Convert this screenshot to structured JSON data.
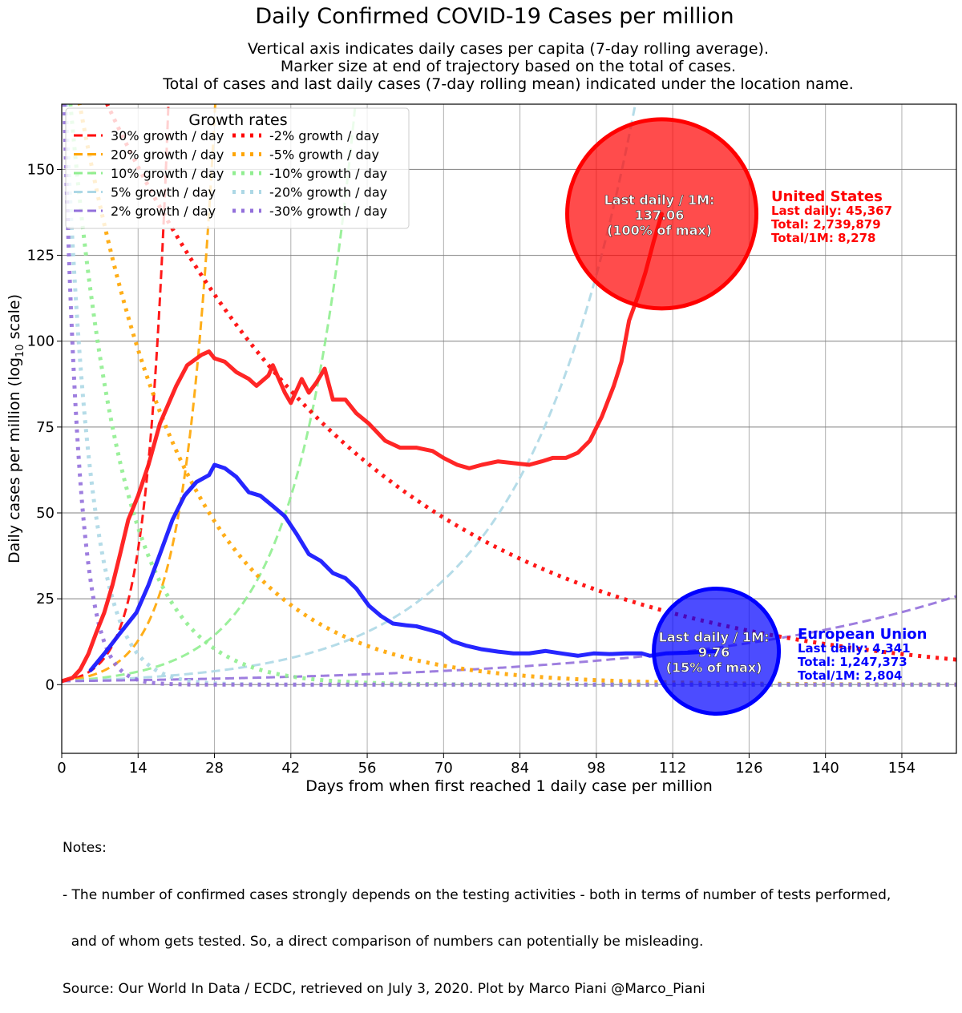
{
  "chart_data": {
    "type": "line",
    "title": "Daily Confirmed COVID-19 Cases per million",
    "subtitle": [
      "Vertical axis indicates daily cases per capita (7-day rolling average).",
      "Marker size at end of trajectory based on the total of cases.",
      "Total of cases and last daily cases (7-day rolling mean) indicated under the location name."
    ],
    "xlabel": "Days from when first reached 1 daily case per million",
    "ylabel_main": "Daily cases per million (log",
    "ylabel_sub": "10",
    "ylabel_end": " scale)",
    "xlim": [
      0,
      164
    ],
    "ylim": [
      -20,
      169
    ],
    "xticks": [
      0,
      14,
      28,
      42,
      56,
      70,
      84,
      98,
      112,
      126,
      140,
      154
    ],
    "yticks": [
      0,
      25,
      50,
      75,
      100,
      125,
      150
    ],
    "grid": true,
    "legend": {
      "title": "Growth rates",
      "placement": "top-left",
      "entries": [
        {
          "label": "30% growth / day",
          "rate": 0.3,
          "color": "#ff0000",
          "style": "dashed"
        },
        {
          "label": "20% growth / day",
          "rate": 0.2,
          "color": "#ffa500",
          "style": "dashed"
        },
        {
          "label": "10% growth / day",
          "rate": 0.1,
          "color": "#90ee90",
          "style": "dashed"
        },
        {
          "label": "5% growth / day",
          "rate": 0.05,
          "color": "#add8e6",
          "style": "dashed"
        },
        {
          "label": "2% growth / day",
          "rate": 0.02,
          "color": "#9370db",
          "style": "dashed"
        },
        {
          "label": "-2% growth / day",
          "rate": -0.02,
          "color": "#ff0000",
          "style": "dotted"
        },
        {
          "label": "-5% growth / day",
          "rate": -0.05,
          "color": "#ffa500",
          "style": "dotted"
        },
        {
          "label": "-10% growth / day",
          "rate": -0.1,
          "color": "#90ee90",
          "style": "dotted"
        },
        {
          "label": "-20% growth / day",
          "rate": -0.2,
          "color": "#add8e6",
          "style": "dotted"
        },
        {
          "label": "-30% growth / day",
          "rate": -0.3,
          "color": "#9370db",
          "style": "dotted"
        }
      ]
    },
    "series": [
      {
        "name": "United States",
        "color": "#ff1a1a",
        "marker_fill": "#ff0000",
        "x": [
          0,
          2,
          3.4,
          4.9,
          6.3,
          7.8,
          9.3,
          10.7,
          12.2,
          14,
          15.9,
          18,
          21,
          23,
          25.6,
          27,
          28,
          29.9,
          32,
          34.3,
          35.7,
          37.9,
          38.7,
          40.9,
          42,
          44,
          45.3,
          46.7,
          48.2,
          49.7,
          52,
          54,
          56.3,
          59.3,
          62,
          65,
          68,
          70,
          72.5,
          74.7,
          77,
          80,
          82.8,
          85.7,
          88,
          90,
          92.4,
          94.6,
          96.8,
          99,
          101.2,
          102.6,
          104,
          105.6,
          107,
          108.5,
          110
        ],
        "y": [
          1,
          2,
          4.4,
          9,
          15,
          21,
          29,
          38,
          48,
          55,
          64,
          76,
          87,
          93,
          96,
          97,
          95,
          94,
          91,
          89,
          87,
          90,
          93,
          85,
          82,
          89,
          85,
          88,
          92,
          83,
          83,
          79,
          76,
          71,
          69,
          69,
          68,
          66,
          64,
          63,
          64,
          65,
          64.5,
          64,
          65,
          66,
          66,
          67.5,
          71,
          78,
          87,
          94,
          106,
          113,
          120,
          129,
          137.06
        ],
        "annotation": {
          "circle": [
            "Last daily / 1M:",
            "137.06",
            "(100% of max)"
          ],
          "label": "United States",
          "lines": [
            "Last daily: 45,367",
            "Total: 2,739,879",
            "Total/1M: 8,278"
          ]
        }
      },
      {
        "name": "European Union",
        "color": "#1a1aff",
        "marker_fill": "#0000ff",
        "x": [
          5.3,
          7.8,
          10.7,
          13.7,
          15.9,
          18,
          20.3,
          22.5,
          24.7,
          27,
          28,
          29.9,
          32,
          34.3,
          36.4,
          38.7,
          40.9,
          43,
          45.3,
          47.5,
          49.7,
          52,
          54,
          56.3,
          58.5,
          60.7,
          63,
          65,
          67.3,
          69.5,
          71.7,
          74,
          77,
          80,
          82.8,
          85.7,
          88.7,
          91.6,
          94.6,
          97.5,
          100.4,
          103.4,
          106.3,
          107.8,
          110.7,
          115,
          120
        ],
        "y": [
          4.2,
          9,
          15,
          21,
          29,
          38,
          48,
          55,
          59,
          61,
          64,
          63,
          60.5,
          56,
          55,
          52,
          49,
          44,
          38,
          36,
          32.5,
          31,
          28,
          23,
          20,
          17.8,
          17.3,
          17,
          16,
          15,
          12.6,
          11.4,
          10.3,
          9.6,
          9.1,
          9.1,
          9.8,
          9.1,
          8.4,
          9.1,
          8.9,
          9.1,
          9.1,
          8.4,
          9.1,
          9.3,
          9.76
        ],
        "annotation": {
          "circle": [
            "Last daily / 1M:",
            "9.76",
            "(15% of max)"
          ],
          "label": "European Union",
          "lines": [
            "Last daily: 4,341",
            "Total: 1,247,373",
            "Total/1M: 2,804"
          ]
        }
      }
    ]
  },
  "notes": [
    "Notes:",
    "- The number of confirmed cases strongly depends on the testing activities - both in terms of number of tests performed,",
    "  and of whom gets tested. So, a direct comparison of numbers can potentially be misleading.",
    "Source: Our World In Data / ECDC, retrieved on July 3, 2020. Plot by Marco Piani @Marco_Piani"
  ]
}
